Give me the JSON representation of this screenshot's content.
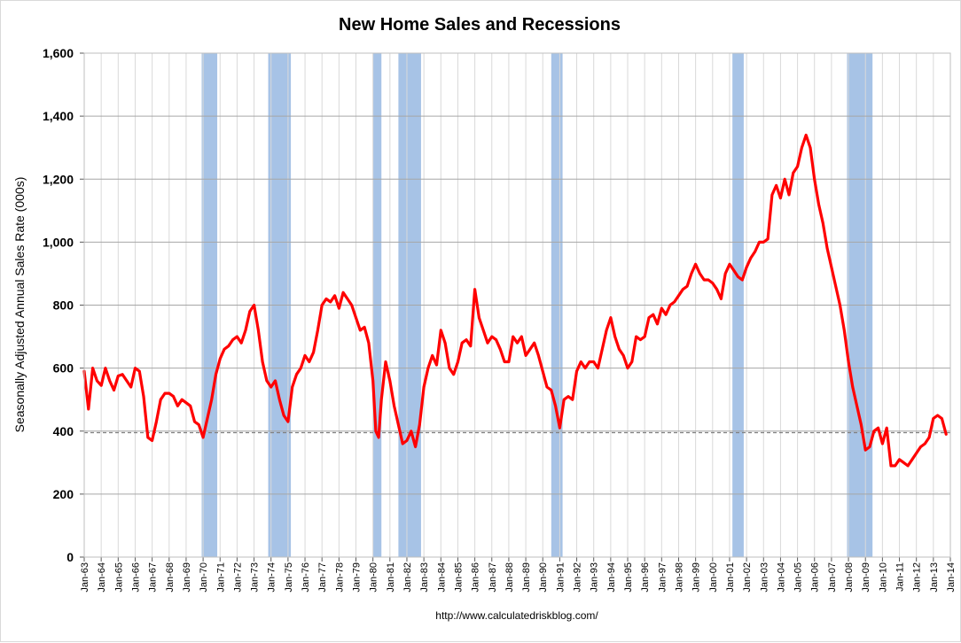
{
  "chart_data": {
    "type": "line",
    "title": "New Home Sales and Recessions",
    "ylabel": "Seasonally Adjusted Annual Sales Rate (000s)",
    "xlabel": "",
    "source": "http://www.calculatedriskblog.com/",
    "ylim": [
      0,
      1600
    ],
    "xlim": [
      "1963-01",
      "2014-01"
    ],
    "yticks": [
      0,
      200,
      400,
      600,
      800,
      1000,
      1200,
      1400,
      1600
    ],
    "ytick_labels": [
      "0",
      "200",
      "400",
      "600",
      "800",
      "1,000",
      "1,200",
      "1,400",
      "1,600"
    ],
    "xtick_labels": [
      "Jan-63",
      "Jan-64",
      "Jan-65",
      "Jan-66",
      "Jan-67",
      "Jan-68",
      "Jan-69",
      "Jan-70",
      "Jan-71",
      "Jan-72",
      "Jan-73",
      "Jan-74",
      "Jan-75",
      "Jan-76",
      "Jan-77",
      "Jan-78",
      "Jan-79",
      "Jan-80",
      "Jan-81",
      "Jan-82",
      "Jan-83",
      "Jan-84",
      "Jan-85",
      "Jan-86",
      "Jan-87",
      "Jan-88",
      "Jan-89",
      "Jan-90",
      "Jan-91",
      "Jan-92",
      "Jan-93",
      "Jan-94",
      "Jan-95",
      "Jan-96",
      "Jan-97",
      "Jan-98",
      "Jan-99",
      "Jan-00",
      "Jan-01",
      "Jan-02",
      "Jan-03",
      "Jan-04",
      "Jan-05",
      "Jan-06",
      "Jan-07",
      "Jan-08",
      "Jan-09",
      "Jan-10",
      "Jan-11",
      "Jan-12",
      "Jan-13",
      "Jan-14"
    ],
    "grid": true,
    "reference_line": 395,
    "recessions": [
      {
        "start": "1969-12",
        "end": "1970-11"
      },
      {
        "start": "1973-11",
        "end": "1975-03"
      },
      {
        "start": "1980-01",
        "end": "1980-07"
      },
      {
        "start": "1981-07",
        "end": "1982-11"
      },
      {
        "start": "1990-07",
        "end": "1991-03"
      },
      {
        "start": "2001-03",
        "end": "2001-11"
      },
      {
        "start": "2007-12",
        "end": "2009-06"
      }
    ],
    "series": [
      {
        "values": [
          {
            "x": "1963-01",
            "y": 590
          },
          {
            "x": "1963-04",
            "y": 470
          },
          {
            "x": "1963-07",
            "y": 600
          },
          {
            "x": "1963-10",
            "y": 560
          },
          {
            "x": "1964-01",
            "y": 545
          },
          {
            "x": "1964-04",
            "y": 600
          },
          {
            "x": "1964-07",
            "y": 560
          },
          {
            "x": "1964-10",
            "y": 530
          },
          {
            "x": "1965-01",
            "y": 575
          },
          {
            "x": "1965-04",
            "y": 580
          },
          {
            "x": "1965-07",
            "y": 560
          },
          {
            "x": "1965-10",
            "y": 540
          },
          {
            "x": "1966-01",
            "y": 600
          },
          {
            "x": "1966-04",
            "y": 590
          },
          {
            "x": "1966-07",
            "y": 510
          },
          {
            "x": "1966-10",
            "y": 380
          },
          {
            "x": "1967-01",
            "y": 370
          },
          {
            "x": "1967-04",
            "y": 430
          },
          {
            "x": "1967-07",
            "y": 500
          },
          {
            "x": "1967-10",
            "y": 520
          },
          {
            "x": "1968-01",
            "y": 520
          },
          {
            "x": "1968-04",
            "y": 510
          },
          {
            "x": "1968-07",
            "y": 480
          },
          {
            "x": "1968-10",
            "y": 500
          },
          {
            "x": "1969-01",
            "y": 490
          },
          {
            "x": "1969-04",
            "y": 480
          },
          {
            "x": "1969-07",
            "y": 430
          },
          {
            "x": "1969-10",
            "y": 420
          },
          {
            "x": "1970-01",
            "y": 380
          },
          {
            "x": "1970-04",
            "y": 440
          },
          {
            "x": "1970-07",
            "y": 500
          },
          {
            "x": "1970-10",
            "y": 580
          },
          {
            "x": "1971-01",
            "y": 630
          },
          {
            "x": "1971-04",
            "y": 660
          },
          {
            "x": "1971-07",
            "y": 670
          },
          {
            "x": "1971-10",
            "y": 690
          },
          {
            "x": "1972-01",
            "y": 700
          },
          {
            "x": "1972-04",
            "y": 680
          },
          {
            "x": "1972-07",
            "y": 720
          },
          {
            "x": "1972-10",
            "y": 780
          },
          {
            "x": "1973-01",
            "y": 800
          },
          {
            "x": "1973-04",
            "y": 720
          },
          {
            "x": "1973-07",
            "y": 620
          },
          {
            "x": "1973-10",
            "y": 560
          },
          {
            "x": "1974-01",
            "y": 540
          },
          {
            "x": "1974-04",
            "y": 560
          },
          {
            "x": "1974-07",
            "y": 500
          },
          {
            "x": "1974-10",
            "y": 450
          },
          {
            "x": "1975-01",
            "y": 430
          },
          {
            "x": "1975-04",
            "y": 540
          },
          {
            "x": "1975-07",
            "y": 580
          },
          {
            "x": "1975-10",
            "y": 600
          },
          {
            "x": "1976-01",
            "y": 640
          },
          {
            "x": "1976-04",
            "y": 620
          },
          {
            "x": "1976-07",
            "y": 650
          },
          {
            "x": "1976-10",
            "y": 720
          },
          {
            "x": "1977-01",
            "y": 800
          },
          {
            "x": "1977-04",
            "y": 820
          },
          {
            "x": "1977-07",
            "y": 810
          },
          {
            "x": "1977-10",
            "y": 830
          },
          {
            "x": "1978-01",
            "y": 790
          },
          {
            "x": "1978-04",
            "y": 840
          },
          {
            "x": "1978-07",
            "y": 820
          },
          {
            "x": "1978-10",
            "y": 800
          },
          {
            "x": "1979-01",
            "y": 760
          },
          {
            "x": "1979-04",
            "y": 720
          },
          {
            "x": "1979-07",
            "y": 730
          },
          {
            "x": "1979-10",
            "y": 680
          },
          {
            "x": "1980-01",
            "y": 560
          },
          {
            "x": "1980-03",
            "y": 400
          },
          {
            "x": "1980-05",
            "y": 380
          },
          {
            "x": "1980-07",
            "y": 500
          },
          {
            "x": "1980-10",
            "y": 620
          },
          {
            "x": "1981-01",
            "y": 560
          },
          {
            "x": "1981-04",
            "y": 480
          },
          {
            "x": "1981-07",
            "y": 420
          },
          {
            "x": "1981-10",
            "y": 360
          },
          {
            "x": "1982-01",
            "y": 370
          },
          {
            "x": "1982-04",
            "y": 400
          },
          {
            "x": "1982-07",
            "y": 350
          },
          {
            "x": "1982-10",
            "y": 420
          },
          {
            "x": "1983-01",
            "y": 540
          },
          {
            "x": "1983-04",
            "y": 600
          },
          {
            "x": "1983-07",
            "y": 640
          },
          {
            "x": "1983-10",
            "y": 610
          },
          {
            "x": "1984-01",
            "y": 720
          },
          {
            "x": "1984-04",
            "y": 680
          },
          {
            "x": "1984-07",
            "y": 600
          },
          {
            "x": "1984-10",
            "y": 580
          },
          {
            "x": "1985-01",
            "y": 620
          },
          {
            "x": "1985-04",
            "y": 680
          },
          {
            "x": "1985-07",
            "y": 690
          },
          {
            "x": "1985-10",
            "y": 670
          },
          {
            "x": "1986-01",
            "y": 850
          },
          {
            "x": "1986-04",
            "y": 760
          },
          {
            "x": "1986-07",
            "y": 720
          },
          {
            "x": "1986-10",
            "y": 680
          },
          {
            "x": "1987-01",
            "y": 700
          },
          {
            "x": "1987-04",
            "y": 690
          },
          {
            "x": "1987-07",
            "y": 660
          },
          {
            "x": "1987-10",
            "y": 620
          },
          {
            "x": "1988-01",
            "y": 620
          },
          {
            "x": "1988-04",
            "y": 700
          },
          {
            "x": "1988-07",
            "y": 680
          },
          {
            "x": "1988-10",
            "y": 700
          },
          {
            "x": "1989-01",
            "y": 640
          },
          {
            "x": "1989-04",
            "y": 660
          },
          {
            "x": "1989-07",
            "y": 680
          },
          {
            "x": "1989-10",
            "y": 640
          },
          {
            "x": "1990-01",
            "y": 590
          },
          {
            "x": "1990-04",
            "y": 540
          },
          {
            "x": "1990-07",
            "y": 530
          },
          {
            "x": "1990-10",
            "y": 480
          },
          {
            "x": "1991-01",
            "y": 410
          },
          {
            "x": "1991-04",
            "y": 500
          },
          {
            "x": "1991-07",
            "y": 510
          },
          {
            "x": "1991-10",
            "y": 500
          },
          {
            "x": "1992-01",
            "y": 590
          },
          {
            "x": "1992-04",
            "y": 620
          },
          {
            "x": "1992-07",
            "y": 600
          },
          {
            "x": "1992-10",
            "y": 620
          },
          {
            "x": "1993-01",
            "y": 620
          },
          {
            "x": "1993-04",
            "y": 600
          },
          {
            "x": "1993-07",
            "y": 660
          },
          {
            "x": "1993-10",
            "y": 720
          },
          {
            "x": "1994-01",
            "y": 760
          },
          {
            "x": "1994-04",
            "y": 700
          },
          {
            "x": "1994-07",
            "y": 660
          },
          {
            "x": "1994-10",
            "y": 640
          },
          {
            "x": "1995-01",
            "y": 600
          },
          {
            "x": "1995-04",
            "y": 620
          },
          {
            "x": "1995-07",
            "y": 700
          },
          {
            "x": "1995-10",
            "y": 690
          },
          {
            "x": "1996-01",
            "y": 700
          },
          {
            "x": "1996-04",
            "y": 760
          },
          {
            "x": "1996-07",
            "y": 770
          },
          {
            "x": "1996-10",
            "y": 740
          },
          {
            "x": "1997-01",
            "y": 790
          },
          {
            "x": "1997-04",
            "y": 770
          },
          {
            "x": "1997-07",
            "y": 800
          },
          {
            "x": "1997-10",
            "y": 810
          },
          {
            "x": "1998-01",
            "y": 830
          },
          {
            "x": "1998-04",
            "y": 850
          },
          {
            "x": "1998-07",
            "y": 860
          },
          {
            "x": "1998-10",
            "y": 900
          },
          {
            "x": "1999-01",
            "y": 930
          },
          {
            "x": "1999-04",
            "y": 900
          },
          {
            "x": "1999-07",
            "y": 880
          },
          {
            "x": "1999-10",
            "y": 880
          },
          {
            "x": "2000-01",
            "y": 870
          },
          {
            "x": "2000-04",
            "y": 850
          },
          {
            "x": "2000-07",
            "y": 820
          },
          {
            "x": "2000-10",
            "y": 900
          },
          {
            "x": "2001-01",
            "y": 930
          },
          {
            "x": "2001-04",
            "y": 910
          },
          {
            "x": "2001-07",
            "y": 890
          },
          {
            "x": "2001-10",
            "y": 880
          },
          {
            "x": "2002-01",
            "y": 920
          },
          {
            "x": "2002-04",
            "y": 950
          },
          {
            "x": "2002-07",
            "y": 970
          },
          {
            "x": "2002-10",
            "y": 1000
          },
          {
            "x": "2003-01",
            "y": 1000
          },
          {
            "x": "2003-04",
            "y": 1010
          },
          {
            "x": "2003-07",
            "y": 1150
          },
          {
            "x": "2003-10",
            "y": 1180
          },
          {
            "x": "2004-01",
            "y": 1140
          },
          {
            "x": "2004-04",
            "y": 1200
          },
          {
            "x": "2004-07",
            "y": 1150
          },
          {
            "x": "2004-10",
            "y": 1220
          },
          {
            "x": "2005-01",
            "y": 1240
          },
          {
            "x": "2005-04",
            "y": 1300
          },
          {
            "x": "2005-07",
            "y": 1340
          },
          {
            "x": "2005-10",
            "y": 1300
          },
          {
            "x": "2006-01",
            "y": 1200
          },
          {
            "x": "2006-04",
            "y": 1120
          },
          {
            "x": "2006-07",
            "y": 1060
          },
          {
            "x": "2006-10",
            "y": 980
          },
          {
            "x": "2007-01",
            "y": 920
          },
          {
            "x": "2007-04",
            "y": 860
          },
          {
            "x": "2007-07",
            "y": 800
          },
          {
            "x": "2007-10",
            "y": 720
          },
          {
            "x": "2008-01",
            "y": 620
          },
          {
            "x": "2008-04",
            "y": 540
          },
          {
            "x": "2008-07",
            "y": 480
          },
          {
            "x": "2008-10",
            "y": 420
          },
          {
            "x": "2009-01",
            "y": 340
          },
          {
            "x": "2009-04",
            "y": 350
          },
          {
            "x": "2009-07",
            "y": 400
          },
          {
            "x": "2009-10",
            "y": 410
          },
          {
            "x": "2010-01",
            "y": 360
          },
          {
            "x": "2010-04",
            "y": 410
          },
          {
            "x": "2010-07",
            "y": 290
          },
          {
            "x": "2010-10",
            "y": 290
          },
          {
            "x": "2011-01",
            "y": 310
          },
          {
            "x": "2011-04",
            "y": 300
          },
          {
            "x": "2011-07",
            "y": 290
          },
          {
            "x": "2011-10",
            "y": 310
          },
          {
            "x": "2012-01",
            "y": 330
          },
          {
            "x": "2012-04",
            "y": 350
          },
          {
            "x": "2012-07",
            "y": 360
          },
          {
            "x": "2012-10",
            "y": 380
          },
          {
            "x": "2013-01",
            "y": 440
          },
          {
            "x": "2013-04",
            "y": 450
          },
          {
            "x": "2013-07",
            "y": 440
          },
          {
            "x": "2013-10",
            "y": 390
          }
        ]
      }
    ],
    "colors": {
      "line": "#ff0000",
      "recession": "#a7c3e6",
      "reference_line": "#808080",
      "grid": "#a6a6a6",
      "axis": "#595959"
    }
  }
}
